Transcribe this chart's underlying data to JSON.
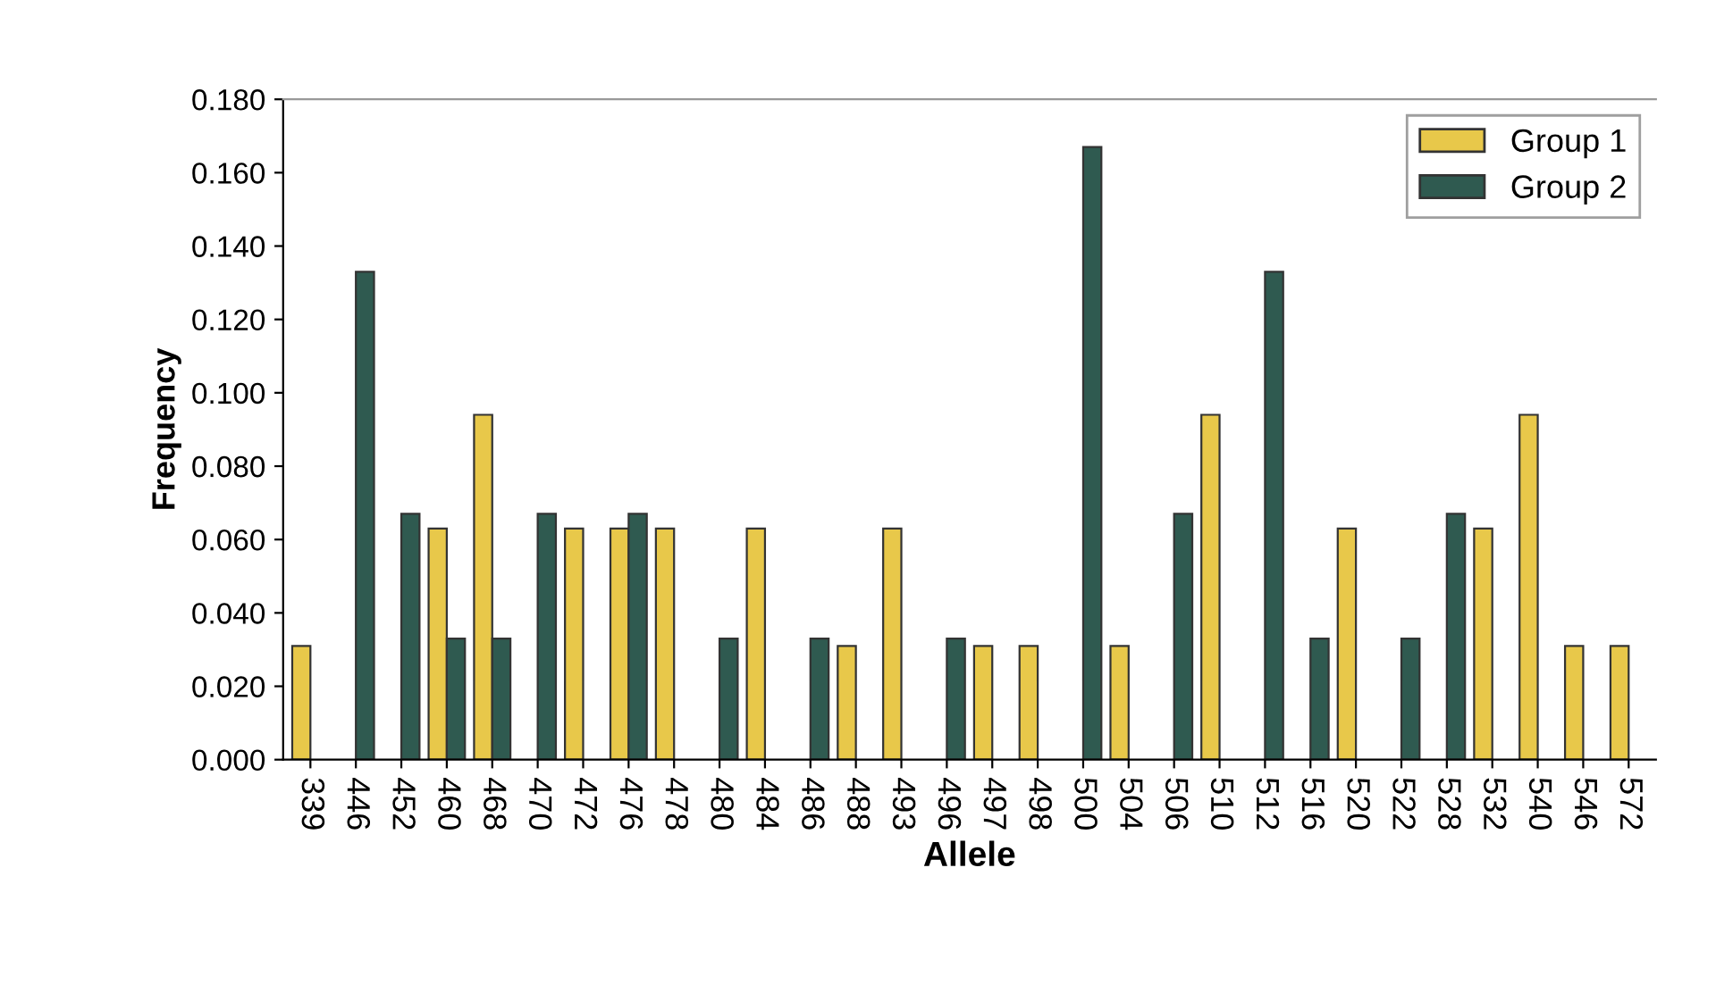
{
  "chart_data": {
    "type": "bar",
    "xlabel": "Allele",
    "ylabel": "Frequency",
    "categories": [
      "339",
      "446",
      "452",
      "460",
      "468",
      "470",
      "472",
      "476",
      "478",
      "480",
      "484",
      "486",
      "488",
      "493",
      "496",
      "497",
      "498",
      "500",
      "504",
      "506",
      "510",
      "512",
      "516",
      "520",
      "522",
      "528",
      "532",
      "540",
      "546",
      "572"
    ],
    "series": [
      {
        "name": "Group 1",
        "color": "#e8c84a",
        "values": [
          0.031,
          0,
          0,
          0.063,
          0.094,
          0,
          0.063,
          0.063,
          0.063,
          0,
          0.063,
          0,
          0.031,
          0.063,
          0,
          0.031,
          0.031,
          0,
          0.031,
          0,
          0.094,
          0,
          0,
          0.063,
          0,
          0,
          0.063,
          0.094,
          0.031,
          0.031
        ]
      },
      {
        "name": "Group 2",
        "color": "#2f5a50",
        "values": [
          0,
          0.133,
          0.067,
          0.033,
          0.033,
          0.067,
          0,
          0.067,
          0,
          0.033,
          0,
          0.033,
          0,
          0,
          0.033,
          0,
          0,
          0.167,
          0,
          0.067,
          0,
          0.133,
          0.033,
          0,
          0.033,
          0.067,
          0,
          0,
          0,
          0
        ]
      }
    ],
    "ylim": [
      0,
      0.18
    ],
    "yticks": [
      {
        "value": 0,
        "label": "0.000"
      },
      {
        "value": 0.02,
        "label": "0.020"
      },
      {
        "value": 0.04,
        "label": "0.040"
      },
      {
        "value": 0.06,
        "label": "0.060"
      },
      {
        "value": 0.08,
        "label": "0.080"
      },
      {
        "value": 0.1,
        "label": "0.100"
      },
      {
        "value": 0.12,
        "label": "0.120"
      },
      {
        "value": 0.14,
        "label": "0.140"
      },
      {
        "value": 0.16,
        "label": "0.160"
      },
      {
        "value": 0.18,
        "label": "0.180"
      }
    ],
    "legend": "top right",
    "grid": false
  }
}
